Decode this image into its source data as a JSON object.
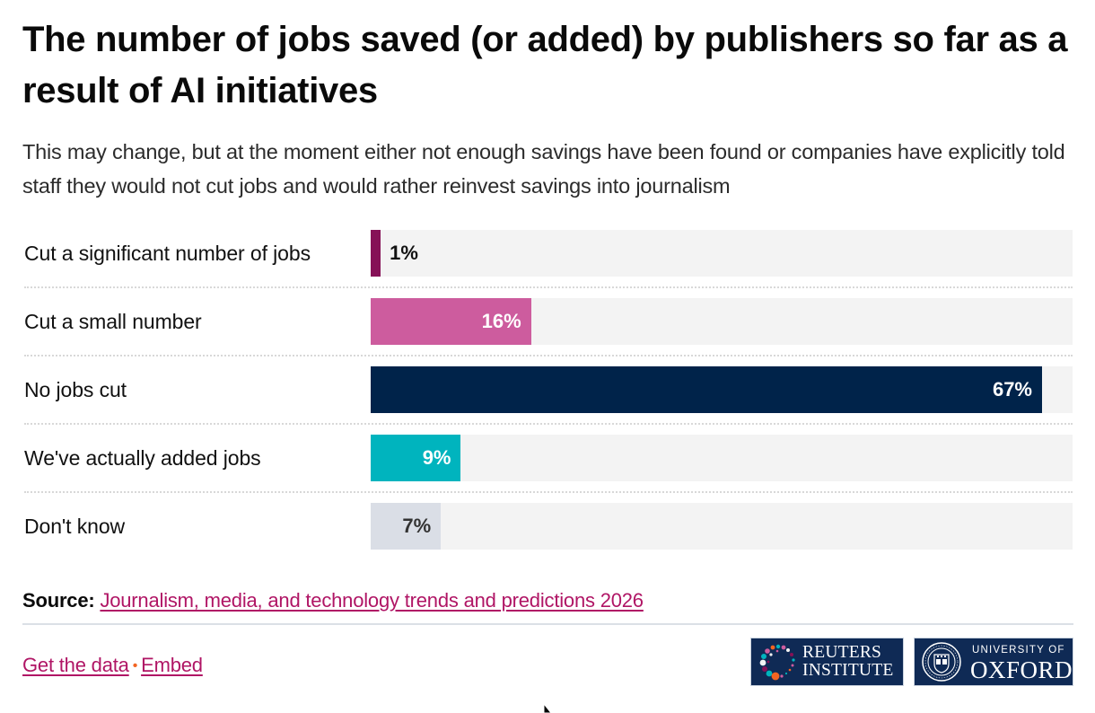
{
  "title": "The number of jobs saved (or added) by publishers so far as a result of AI initiatives",
  "subtitle": "This may change, but at the moment either not enough savings have been found or companies have explicitly told staff they would not cut jobs and would rather reinvest savings into journalism",
  "chart_data": {
    "type": "bar",
    "orientation": "horizontal",
    "title": "The number of jobs saved (or added) by publishers so far as a result of AI initiatives",
    "subtitle": "This may change, but at the moment either not enough savings have been found or companies have explicitly told staff they would not cut jobs and would rather reinvest savings into journalism",
    "xlabel": "",
    "ylabel": "",
    "xlim": [
      0,
      70
    ],
    "grid": false,
    "legend": "none",
    "unit": "%",
    "categories": [
      "Cut a significant number of jobs",
      "Cut a small number",
      "No jobs cut",
      "We've actually added jobs",
      "Don't know"
    ],
    "values": [
      1,
      16,
      67,
      9,
      7
    ],
    "value_labels": [
      "1%",
      "16%",
      "67%",
      "9%",
      "7%"
    ],
    "colors": [
      "#861157",
      "#cd5c9e",
      "#00234a",
      "#00b4be",
      "#dadee6"
    ],
    "label_colors": [
      "#111111",
      "#ffffff",
      "#ffffff",
      "#ffffff",
      "#333333"
    ]
  },
  "source": {
    "label": "Source:",
    "link_text": "Journalism, media, and technology trends and predictions 2026"
  },
  "footer": {
    "get_data_label": "Get the data",
    "separator": "•",
    "embed_label": "Embed"
  },
  "logos": {
    "reuters": {
      "line1": "REUTERS",
      "line2": "INSTITUTE",
      "icon": "dots-circle-icon"
    },
    "oxford": {
      "small": "UNIVERSITY OF",
      "big": "OXFORD",
      "icon": "oxford-crest-icon"
    }
  },
  "colors": {
    "link": "#b01565",
    "track": "#f3f3f3",
    "logo_bg": "#0f2a55",
    "separator_dot": "#f26522"
  }
}
